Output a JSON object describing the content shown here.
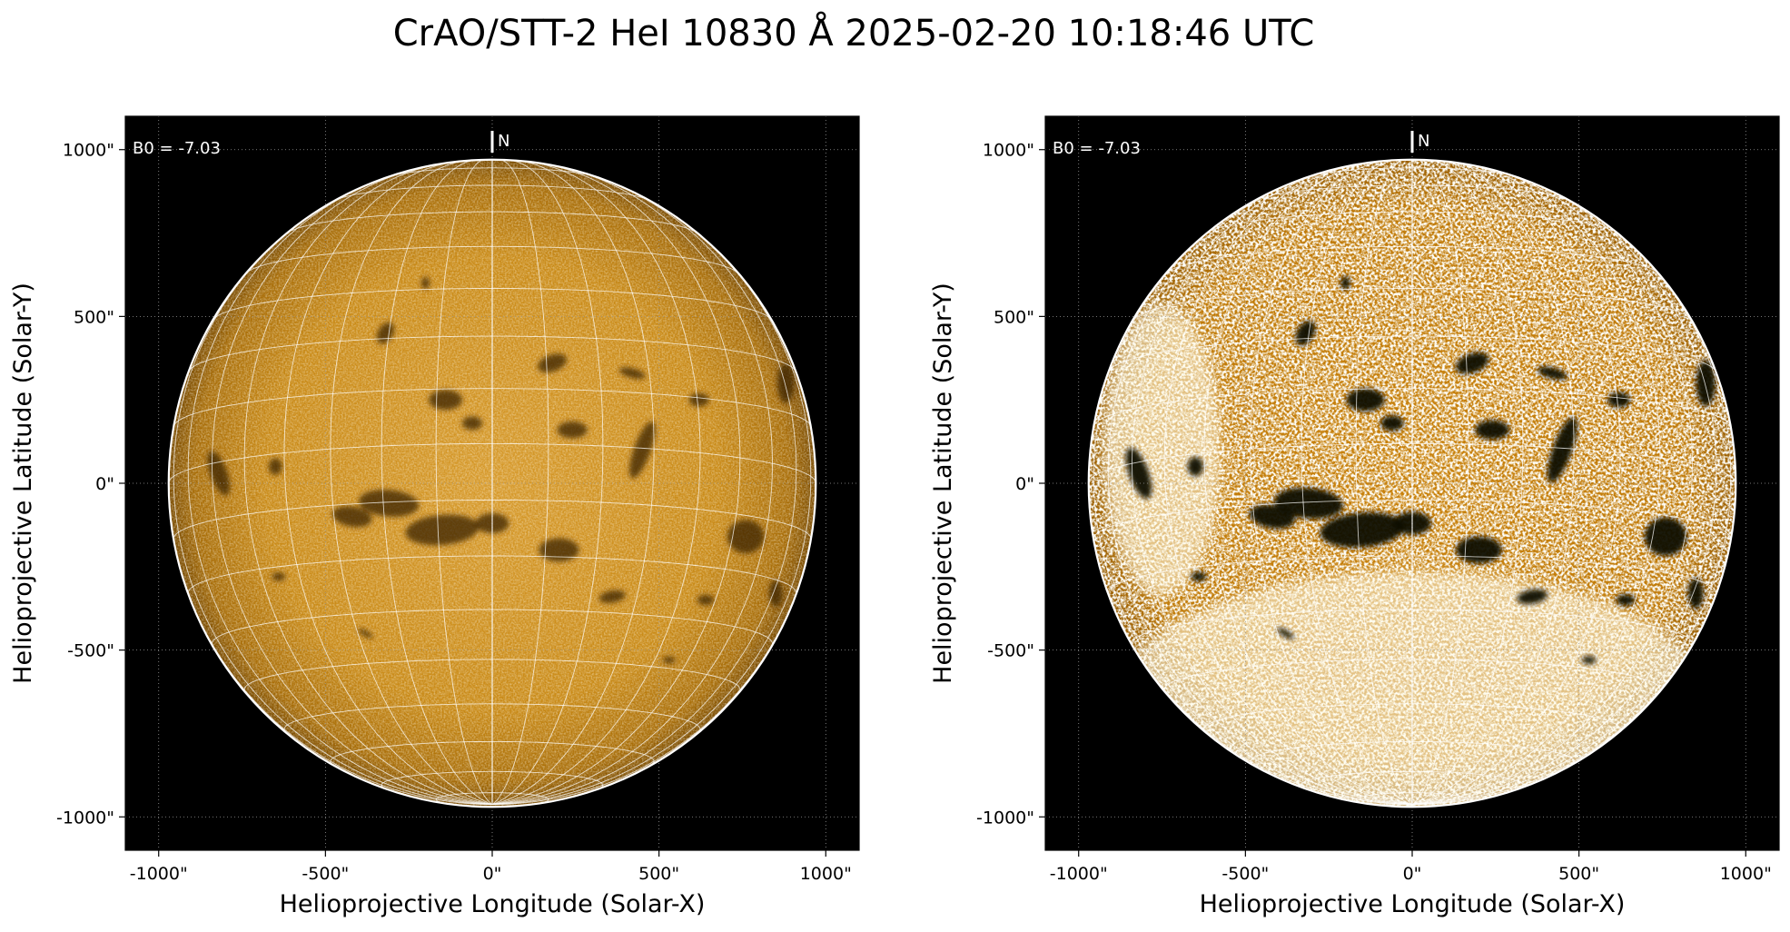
{
  "title": "CrAO/STT-2 HeI 10830 Å 2025-02-20 10:18:46 UTC",
  "colors": {
    "background": "#ffffff",
    "plot_bg": "#000000",
    "disk_base": "#c8860d",
    "disk_dark": "#3a2204",
    "disk_bright": "#fff4da",
    "grid": "#ffffff",
    "text": "#000000"
  },
  "panels": [
    {
      "name": "panel-original",
      "b0_label": "B0 = -7.03",
      "north_label": "N",
      "ylabel": "Helioprojective Latitude (Solar-Y)",
      "xlabel": "Helioprojective Longitude (Solar-X)",
      "xticks": [
        "-1000\"",
        "-500\"",
        "0\"",
        "500\"",
        "1000\""
      ],
      "yticks": [
        "1000\"",
        "500\"",
        "0\"",
        "-500\"",
        "-1000\""
      ],
      "enhanced": false
    },
    {
      "name": "panel-enhanced",
      "b0_label": "B0 = -7.03",
      "north_label": "N",
      "ylabel": "Helioprojective Latitude (Solar-Y)",
      "xlabel": "Helioprojective Longitude (Solar-X)",
      "xticks": [
        "-1000\"",
        "-500\"",
        "0\"",
        "500\"",
        "1000\""
      ],
      "yticks": [
        "1000\"",
        "500\"",
        "0\"",
        "-500\"",
        "-1000\""
      ],
      "enhanced": true
    }
  ],
  "axis": {
    "range": [
      -1100,
      1100
    ],
    "tick_values": [
      -1000,
      -500,
      0,
      500,
      1000
    ],
    "solar_radius_arcsec": 970,
    "b0_degrees": -7.03,
    "grid_lon_step_deg": 10,
    "grid_lat_step_deg": 10
  }
}
